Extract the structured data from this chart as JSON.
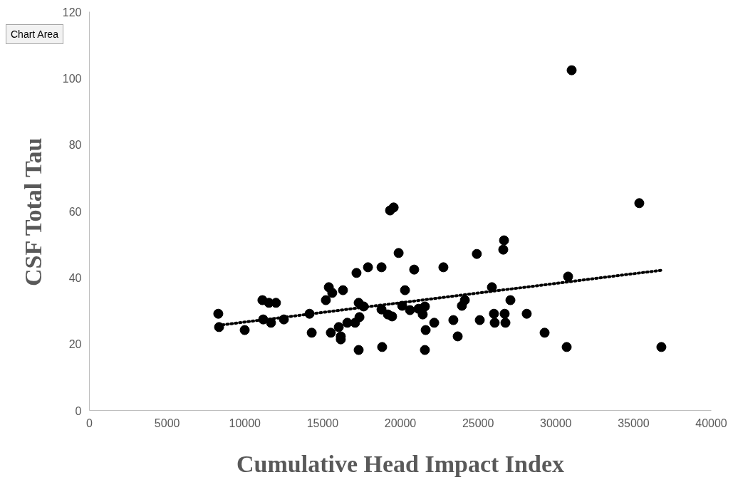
{
  "chart_data": {
    "type": "scatter",
    "xlabel": "Cumulative Head Impact Index",
    "ylabel": "CSF Total Tau",
    "annotations": [
      "Chart Area"
    ],
    "xlim": [
      0,
      40000
    ],
    "xticks": [
      0,
      5000,
      10000,
      15000,
      20000,
      25000,
      30000,
      35000,
      40000
    ],
    "ylim": [
      0,
      120
    ],
    "yticks": [
      0,
      20,
      40,
      60,
      80,
      100,
      120
    ],
    "grid": false,
    "series": [
      {
        "color": "#000000",
        "marker": "circle",
        "x": [
          8290,
          8340,
          9990,
          11130,
          11180,
          11550,
          11680,
          12000,
          12510,
          14160,
          14300,
          15210,
          15400,
          15620,
          15530,
          16040,
          16170,
          16170,
          16310,
          16590,
          17090,
          17180,
          17320,
          17320,
          17370,
          17640,
          17920,
          18790,
          18790,
          18830,
          19200,
          19340,
          19570,
          19470,
          19890,
          20120,
          20300,
          20620,
          20890,
          21170,
          21440,
          21580,
          21630,
          21580,
          22180,
          22770,
          23410,
          23690,
          23960,
          24150,
          24920,
          25110,
          25890,
          26020,
          26070,
          26620,
          26670,
          26710,
          26760,
          27080,
          28130,
          29280,
          30700,
          30790,
          31020,
          35370,
          36790
        ],
        "values": [
          29.1,
          25.1,
          24.2,
          33.2,
          27.4,
          32.4,
          26.4,
          32.4,
          27.4,
          29.1,
          23.4,
          33.2,
          37.1,
          35.4,
          23.4,
          25.1,
          22.3,
          21.4,
          36.2,
          26.4,
          26.4,
          41.4,
          32.4,
          18.2,
          28.1,
          31.3,
          43.1,
          43.1,
          30.4,
          19.1,
          28.9,
          60.2,
          61.1,
          28.3,
          47.4,
          31.5,
          36.2,
          30.2,
          42.4,
          30.6,
          28.9,
          31.3,
          24.2,
          18.2,
          26.4,
          43.1,
          27.2,
          22.3,
          31.5,
          33.2,
          47.1,
          27.2,
          37.1,
          29.1,
          26.4,
          48.4,
          51.2,
          29.1,
          26.4,
          33.2,
          29.1,
          23.4,
          19.1,
          40.3,
          102.4,
          62.4,
          19.1
        ]
      },
      {
        "type": "line",
        "color": "#000000",
        "line_style": "dotted",
        "x": [
          8290,
          36790
        ],
        "values": [
          25.6,
          42.2
        ]
      }
    ]
  }
}
